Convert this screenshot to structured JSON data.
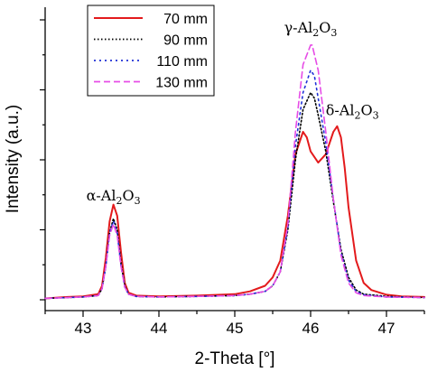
{
  "chart_data": {
    "type": "line",
    "xlabel": "2-Theta [°]",
    "ylabel": "Intensity (a.u.)",
    "xlim": [
      42.5,
      47.5
    ],
    "xticks": [
      "43",
      "44",
      "45",
      "46",
      "47"
    ],
    "ylim": [
      0,
      1.0
    ],
    "y_tick_labels_shown": false,
    "legend_position": "top-left",
    "annotations": [
      {
        "greek": "α",
        "formula": "Al",
        "sub1": "2",
        "mid": "O",
        "sub2": "3",
        "x": 43.4,
        "y": 0.355
      },
      {
        "greek": "γ",
        "formula": "Al",
        "sub1": "2",
        "mid": "O",
        "sub2": "3",
        "x": 46.0,
        "y": 0.955
      },
      {
        "greek": "δ",
        "formula": "Al",
        "sub1": "2",
        "mid": "O",
        "sub2": "3",
        "x": 46.55,
        "y": 0.66
      }
    ],
    "series": [
      {
        "name": "70 mm",
        "color": "#e31a1c",
        "dash": "",
        "x": [
          42.5,
          42.8,
          43.0,
          43.2,
          43.25,
          43.3,
          43.35,
          43.4,
          43.45,
          43.5,
          43.55,
          43.6,
          43.7,
          44.0,
          44.5,
          45.0,
          45.2,
          45.4,
          45.5,
          45.6,
          45.7,
          45.8,
          45.9,
          45.95,
          46.0,
          46.1,
          46.2,
          46.3,
          46.35,
          46.4,
          46.45,
          46.5,
          46.6,
          46.7,
          46.8,
          47.0,
          47.2,
          47.5
        ],
        "y": [
          0.005,
          0.01,
          0.012,
          0.02,
          0.05,
          0.15,
          0.28,
          0.34,
          0.3,
          0.17,
          0.06,
          0.025,
          0.015,
          0.012,
          0.015,
          0.02,
          0.03,
          0.05,
          0.08,
          0.14,
          0.3,
          0.52,
          0.6,
          0.58,
          0.53,
          0.49,
          0.52,
          0.6,
          0.62,
          0.58,
          0.47,
          0.33,
          0.14,
          0.06,
          0.035,
          0.018,
          0.012,
          0.01
        ]
      },
      {
        "name": "90 mm",
        "color": "#000000",
        "dash": "1.5 2.5",
        "x": [
          42.5,
          42.8,
          43.0,
          43.2,
          43.25,
          43.3,
          43.35,
          43.4,
          43.45,
          43.5,
          43.55,
          43.6,
          43.7,
          44.0,
          44.5,
          45.0,
          45.2,
          45.4,
          45.5,
          45.6,
          45.7,
          45.8,
          45.9,
          46.0,
          46.05,
          46.1,
          46.2,
          46.3,
          46.4,
          46.5,
          46.6,
          46.7,
          47.0,
          47.5
        ],
        "y": [
          0.005,
          0.008,
          0.01,
          0.015,
          0.04,
          0.12,
          0.24,
          0.29,
          0.25,
          0.13,
          0.05,
          0.02,
          0.012,
          0.01,
          0.012,
          0.015,
          0.02,
          0.03,
          0.05,
          0.1,
          0.25,
          0.5,
          0.68,
          0.74,
          0.72,
          0.66,
          0.53,
          0.35,
          0.18,
          0.08,
          0.035,
          0.02,
          0.012,
          0.008
        ]
      },
      {
        "name": "110 mm",
        "color": "#1f2fd6",
        "dash": "2 4",
        "x": [
          42.5,
          42.8,
          43.0,
          43.2,
          43.25,
          43.3,
          43.35,
          43.4,
          43.45,
          43.5,
          43.55,
          43.6,
          43.7,
          44.0,
          44.5,
          45.0,
          45.2,
          45.4,
          45.5,
          45.6,
          45.7,
          45.8,
          45.9,
          46.0,
          46.05,
          46.1,
          46.2,
          46.3,
          46.4,
          46.5,
          46.6,
          46.7,
          47.0,
          47.5
        ],
        "y": [
          0.005,
          0.008,
          0.01,
          0.015,
          0.04,
          0.12,
          0.24,
          0.28,
          0.24,
          0.12,
          0.045,
          0.02,
          0.012,
          0.01,
          0.012,
          0.015,
          0.02,
          0.03,
          0.05,
          0.1,
          0.26,
          0.55,
          0.74,
          0.82,
          0.8,
          0.72,
          0.56,
          0.36,
          0.17,
          0.07,
          0.03,
          0.018,
          0.01,
          0.008
        ]
      },
      {
        "name": "130 mm",
        "color": "#e64ce6",
        "dash": "7 4",
        "x": [
          42.5,
          42.8,
          43.0,
          43.2,
          43.25,
          43.3,
          43.35,
          43.4,
          43.45,
          43.5,
          43.55,
          43.6,
          43.7,
          44.0,
          44.5,
          45.0,
          45.2,
          45.4,
          45.5,
          45.6,
          45.7,
          45.8,
          45.9,
          46.0,
          46.02,
          46.1,
          46.2,
          46.3,
          46.4,
          46.5,
          46.6,
          46.7,
          47.0,
          47.5
        ],
        "y": [
          0.005,
          0.008,
          0.01,
          0.015,
          0.04,
          0.12,
          0.23,
          0.27,
          0.23,
          0.12,
          0.045,
          0.02,
          0.012,
          0.01,
          0.012,
          0.015,
          0.02,
          0.03,
          0.05,
          0.1,
          0.27,
          0.6,
          0.84,
          0.91,
          0.91,
          0.82,
          0.6,
          0.36,
          0.16,
          0.06,
          0.025,
          0.015,
          0.01,
          0.008
        ]
      }
    ]
  }
}
